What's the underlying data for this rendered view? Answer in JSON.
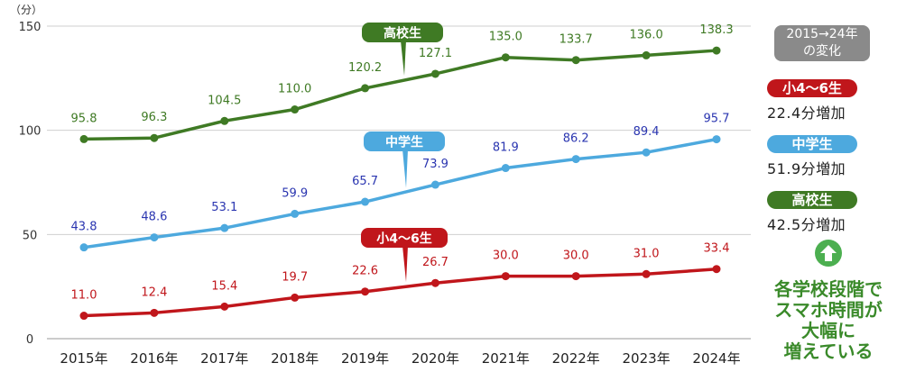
{
  "chart_data": {
    "type": "line",
    "y_unit": "（分）",
    "categories": [
      "2015年",
      "2016年",
      "2017年",
      "2018年",
      "2019年",
      "2020年",
      "2021年",
      "2022年",
      "2023年",
      "2024年"
    ],
    "ylim": [
      0,
      150
    ],
    "yticks": [
      0,
      50,
      100,
      150
    ],
    "grid": true,
    "series": [
      {
        "name": "高校生",
        "color": "#3f7a24",
        "values": [
          95.8,
          96.3,
          104.5,
          110.0,
          120.2,
          127.1,
          135.0,
          133.7,
          136.0,
          138.3
        ]
      },
      {
        "name": "中学生",
        "color": "#4da9de",
        "values": [
          43.8,
          48.6,
          53.1,
          59.9,
          65.7,
          73.9,
          81.9,
          86.2,
          89.4,
          95.7
        ]
      },
      {
        "name": "小4〜6生",
        "color": "#c0161b",
        "values": [
          11.0,
          12.4,
          15.4,
          19.7,
          22.6,
          26.7,
          30.0,
          30.0,
          31.0,
          33.4
        ]
      }
    ]
  },
  "legend": {
    "range_label_line1": "2015→24年",
    "range_label_line2": "の変化",
    "items": [
      {
        "name": "小4〜6生",
        "color": "#c0161b",
        "change": "22.4分増加"
      },
      {
        "name": "中学生",
        "color": "#4da9de",
        "change": "51.9分増加"
      },
      {
        "name": "高校生",
        "color": "#3f7a24",
        "change": "42.5分増加"
      }
    ],
    "arrow_icon": "up-arrow-icon",
    "summary_lines": [
      "各学校段階で",
      "スマホ時間が",
      "大幅に",
      "増えている"
    ]
  }
}
